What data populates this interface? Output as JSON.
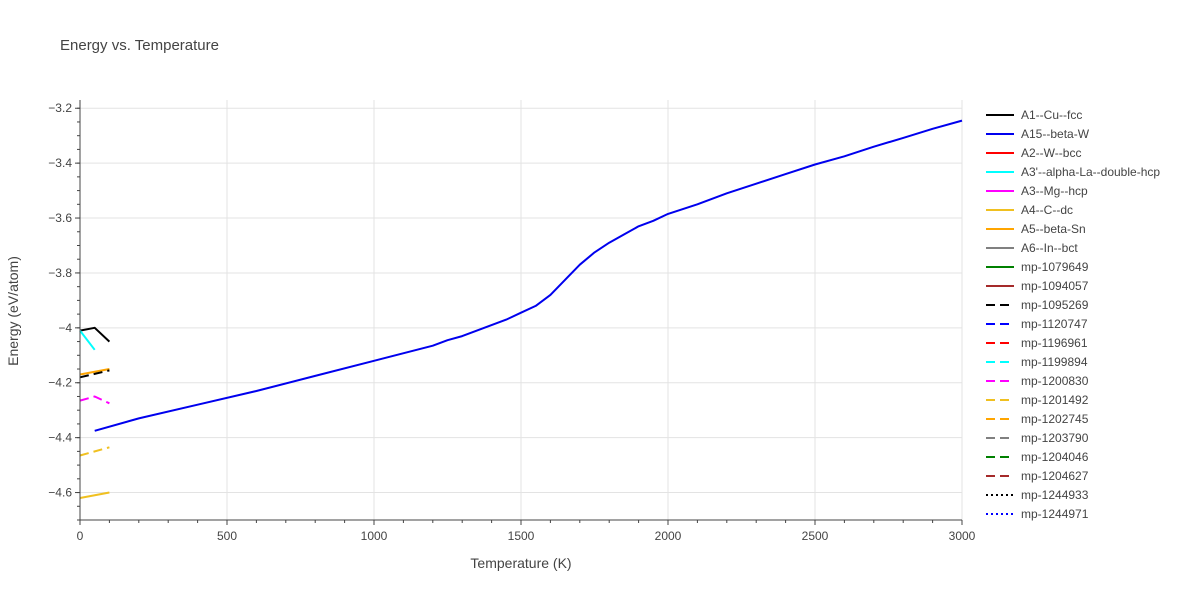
{
  "chart_data": {
    "type": "line",
    "title": "Energy vs. Temperature",
    "xlabel": "Temperature (K)",
    "ylabel": "Energy (eV/atom)",
    "xlim": [
      0,
      3000
    ],
    "ylim": [
      -4.7,
      -3.17
    ],
    "x_ticks": [
      0,
      500,
      1000,
      1500,
      2000,
      2500,
      3000
    ],
    "y_ticks": [
      -4.6,
      -4.4,
      -4.2,
      -4,
      -3.8,
      -3.6,
      -3.4,
      -3.2
    ],
    "x_tick_labels": [
      "0",
      "500",
      "1000",
      "1500",
      "2000",
      "2500",
      "3000"
    ],
    "y_tick_labels": [
      "−4.6",
      "−4.4",
      "−4.2",
      "−4",
      "−3.8",
      "−3.6",
      "−3.4",
      "−3.2"
    ],
    "grid": true,
    "legend_position": "right",
    "series": [
      {
        "name": "A1--Cu--fcc",
        "color": "#000000",
        "dash": "solid",
        "x": [
          0,
          50,
          100
        ],
        "y": [
          -4.01,
          -4.0,
          -4.05
        ]
      },
      {
        "name": "A15--beta-W",
        "color": "#0000ee",
        "dash": "solid",
        "x": [
          50,
          200,
          400,
          600,
          800,
          1000,
          1200,
          1250,
          1300,
          1350,
          1400,
          1450,
          1500,
          1550,
          1600,
          1650,
          1700,
          1750,
          1800,
          1850,
          1900,
          1950,
          2000,
          2100,
          2200,
          2300,
          2400,
          2500,
          2600,
          2700,
          2800,
          2900,
          3000
        ],
        "y": [
          -4.375,
          -4.33,
          -4.28,
          -4.23,
          -4.175,
          -4.12,
          -4.065,
          -4.045,
          -4.03,
          -4.01,
          -3.99,
          -3.97,
          -3.945,
          -3.92,
          -3.88,
          -3.825,
          -3.77,
          -3.725,
          -3.69,
          -3.66,
          -3.63,
          -3.61,
          -3.585,
          -3.55,
          -3.51,
          -3.475,
          -3.44,
          -3.405,
          -3.375,
          -3.34,
          -3.308,
          -3.275,
          -3.245
        ]
      },
      {
        "name": "A2--W--bcc",
        "color": "#ff0000",
        "dash": "solid",
        "x": [],
        "y": []
      },
      {
        "name": "A3'--alpha-La--double-hcp",
        "color": "#00ffff",
        "dash": "solid",
        "x": [
          0,
          50
        ],
        "y": [
          -4.01,
          -4.08
        ]
      },
      {
        "name": "A3--Mg--hcp",
        "color": "#ff00ff",
        "dash": "solid",
        "x": [],
        "y": []
      },
      {
        "name": "A4--C--dc",
        "color": "#f0c020",
        "dash": "solid",
        "x": [
          0,
          100
        ],
        "y": [
          -4.62,
          -4.6
        ]
      },
      {
        "name": "A5--beta-Sn",
        "color": "#ffa500",
        "dash": "solid",
        "x": [
          0,
          100
        ],
        "y": [
          -4.17,
          -4.15
        ]
      },
      {
        "name": "A6--In--bct",
        "color": "#808080",
        "dash": "solid",
        "x": [],
        "y": []
      },
      {
        "name": "mp-1079649",
        "color": "#008000",
        "dash": "solid",
        "x": [],
        "y": []
      },
      {
        "name": "mp-1094057",
        "color": "#a52a2a",
        "dash": "solid",
        "x": [],
        "y": []
      },
      {
        "name": "mp-1095269",
        "color": "#000000",
        "dash": "dash",
        "x": [
          0,
          100
        ],
        "y": [
          -4.18,
          -4.155
        ]
      },
      {
        "name": "mp-1120747",
        "color": "#0000ff",
        "dash": "dash",
        "x": [],
        "y": []
      },
      {
        "name": "mp-1196961",
        "color": "#ff0000",
        "dash": "dash",
        "x": [],
        "y": []
      },
      {
        "name": "mp-1199894",
        "color": "#00ffff",
        "dash": "dash",
        "x": [],
        "y": []
      },
      {
        "name": "mp-1200830",
        "color": "#ff00ff",
        "dash": "dash",
        "x": [
          0,
          50,
          100
        ],
        "y": [
          -4.265,
          -4.25,
          -4.275
        ]
      },
      {
        "name": "mp-1201492",
        "color": "#f0c020",
        "dash": "dash",
        "x": [
          0,
          100
        ],
        "y": [
          -4.465,
          -4.435
        ]
      },
      {
        "name": "mp-1202745",
        "color": "#ffa500",
        "dash": "dash",
        "x": [],
        "y": []
      },
      {
        "name": "mp-1203790",
        "color": "#808080",
        "dash": "dash",
        "x": [],
        "y": []
      },
      {
        "name": "mp-1204046",
        "color": "#008000",
        "dash": "dash",
        "x": [],
        "y": []
      },
      {
        "name": "mp-1204627",
        "color": "#a52a2a",
        "dash": "dash",
        "x": [],
        "y": []
      },
      {
        "name": "mp-1244933",
        "color": "#000000",
        "dash": "dot",
        "x": [],
        "y": []
      },
      {
        "name": "mp-1244971",
        "color": "#0000ff",
        "dash": "dot",
        "x": [],
        "y": []
      }
    ]
  }
}
